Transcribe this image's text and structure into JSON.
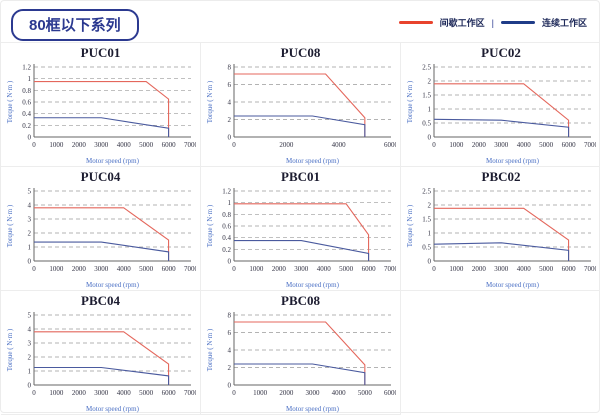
{
  "header": {
    "title": "80框以下系列"
  },
  "legend": {
    "separator": "|",
    "items": [
      {
        "label": "间歇工作区",
        "color": "#e8432d"
      },
      {
        "label": "连续工作区",
        "color": "#1f3c88"
      }
    ]
  },
  "colors": {
    "curve_red": "#e4675c",
    "curve_blue": "#4a5a9e",
    "grid": "#9a9a9a",
    "axis": "#666666"
  },
  "chart_data": [
    {
      "type": "line",
      "title": "PUC01",
      "xlabel": "Motor speed (rpm)",
      "ylabel": "Torque ( N·m )",
      "xlim": [
        0,
        7000
      ],
      "ylim": [
        0,
        1.2
      ],
      "xticks": [
        0,
        1000,
        2000,
        3000,
        4000,
        5000,
        6000,
        7000
      ],
      "yticks": [
        0,
        0.2,
        0.4,
        0.6,
        0.8,
        1,
        1.2
      ],
      "series": [
        {
          "name": "间歇工作区",
          "color_key": "curve_red",
          "points": [
            [
              0,
              0.95
            ],
            [
              5000,
              0.95
            ],
            [
              6000,
              0.65
            ],
            [
              6000,
              0
            ]
          ]
        },
        {
          "name": "连续工作区",
          "color_key": "curve_blue",
          "points": [
            [
              0,
              0.33
            ],
            [
              3000,
              0.33
            ],
            [
              6000,
              0.15
            ],
            [
              6000,
              0
            ]
          ]
        }
      ]
    },
    {
      "type": "line",
      "title": "PUC08",
      "xlabel": "Motor speed (rpm)",
      "ylabel": "Torque ( N·m )",
      "xlim": [
        0,
        6000
      ],
      "ylim": [
        0,
        8
      ],
      "xticks": [
        0,
        2000,
        4000,
        6000
      ],
      "yticks": [
        0,
        2,
        4,
        6,
        8
      ],
      "series": [
        {
          "name": "间歇工作区",
          "color_key": "curve_red",
          "points": [
            [
              0,
              7.2
            ],
            [
              3500,
              7.2
            ],
            [
              5000,
              2.2
            ],
            [
              5000,
              0
            ]
          ]
        },
        {
          "name": "连续工作区",
          "color_key": "curve_blue",
          "points": [
            [
              0,
              2.4
            ],
            [
              3000,
              2.4
            ],
            [
              5000,
              1.4
            ],
            [
              5000,
              0
            ]
          ]
        }
      ]
    },
    {
      "type": "line",
      "title": "PUC02",
      "xlabel": "Motor speed (rpm)",
      "ylabel": "Torque ( N·m )",
      "xlim": [
        0,
        7000
      ],
      "ylim": [
        0,
        2.5
      ],
      "xticks": [
        0,
        1000,
        2000,
        3000,
        4000,
        5000,
        6000,
        7000
      ],
      "yticks": [
        0,
        0.5,
        1,
        1.5,
        2,
        2.5
      ],
      "series": [
        {
          "name": "间歇工作区",
          "color_key": "curve_red",
          "points": [
            [
              0,
              1.9
            ],
            [
              4000,
              1.9
            ],
            [
              6000,
              0.6
            ],
            [
              6000,
              0
            ]
          ]
        },
        {
          "name": "连续工作区",
          "color_key": "curve_blue",
          "points": [
            [
              0,
              0.63
            ],
            [
              3000,
              0.6
            ],
            [
              6000,
              0.35
            ],
            [
              6000,
              0
            ]
          ]
        }
      ]
    },
    {
      "type": "line",
      "title": "PUC04",
      "xlabel": "Motor speed (rpm)",
      "ylabel": "Torque ( N·m )",
      "xlim": [
        0,
        7000
      ],
      "ylim": [
        0,
        5
      ],
      "xticks": [
        0,
        1000,
        2000,
        3000,
        4000,
        5000,
        6000,
        7000
      ],
      "yticks": [
        0,
        1,
        2,
        3,
        4,
        5
      ],
      "series": [
        {
          "name": "间歇工作区",
          "color_key": "curve_red",
          "points": [
            [
              0,
              3.8
            ],
            [
              4000,
              3.8
            ],
            [
              6000,
              1.5
            ],
            [
              6000,
              0
            ]
          ]
        },
        {
          "name": "连续工作区",
          "color_key": "curve_blue",
          "points": [
            [
              0,
              1.35
            ],
            [
              3000,
              1.35
            ],
            [
              6000,
              0.65
            ],
            [
              6000,
              0
            ]
          ]
        }
      ]
    },
    {
      "type": "line",
      "title": "PBC01",
      "xlabel": "Motor speed (rpm)",
      "ylabel": "Torque ( N·m )",
      "xlim": [
        0,
        7000
      ],
      "ylim": [
        0,
        1.2
      ],
      "xticks": [
        0,
        1000,
        2000,
        3000,
        4000,
        5000,
        6000,
        7000
      ],
      "yticks": [
        0,
        0.2,
        0.4,
        0.6,
        0.8,
        1,
        1.2
      ],
      "series": [
        {
          "name": "间歇工作区",
          "color_key": "curve_red",
          "points": [
            [
              0,
              0.98
            ],
            [
              5000,
              0.98
            ],
            [
              6000,
              0.45
            ],
            [
              6000,
              0
            ]
          ]
        },
        {
          "name": "连续工作区",
          "color_key": "curve_blue",
          "points": [
            [
              0,
              0.35
            ],
            [
              3000,
              0.35
            ],
            [
              6000,
              0.13
            ],
            [
              6000,
              0
            ]
          ]
        }
      ]
    },
    {
      "type": "line",
      "title": "PBC02",
      "xlabel": "Motor speed (rpm)",
      "ylabel": "Torque ( N·m )",
      "xlim": [
        0,
        7000
      ],
      "ylim": [
        0,
        2.5
      ],
      "xticks": [
        0,
        1000,
        2000,
        3000,
        4000,
        5000,
        6000,
        7000
      ],
      "yticks": [
        0,
        0.5,
        1,
        1.5,
        2,
        2.5
      ],
      "series": [
        {
          "name": "间歇工作区",
          "color_key": "curve_red",
          "points": [
            [
              0,
              1.88
            ],
            [
              4000,
              1.88
            ],
            [
              6000,
              0.75
            ],
            [
              6000,
              0
            ]
          ]
        },
        {
          "name": "连续工作区",
          "color_key": "curve_blue",
          "points": [
            [
              0,
              0.6
            ],
            [
              3000,
              0.65
            ],
            [
              6000,
              0.38
            ],
            [
              6000,
              0
            ]
          ]
        }
      ]
    },
    {
      "type": "line",
      "title": "PBC04",
      "xlabel": "Motor speed (rpm)",
      "ylabel": "Torque ( N·m )",
      "xlim": [
        0,
        7000
      ],
      "ylim": [
        0,
        5
      ],
      "xticks": [
        0,
        1000,
        2000,
        3000,
        4000,
        5000,
        6000,
        7000
      ],
      "yticks": [
        0,
        1,
        2,
        3,
        4,
        5
      ],
      "series": [
        {
          "name": "间歇工作区",
          "color_key": "curve_red",
          "points": [
            [
              0,
              3.8
            ],
            [
              4000,
              3.8
            ],
            [
              6000,
              1.5
            ],
            [
              6000,
              0
            ]
          ]
        },
        {
          "name": "连续工作区",
          "color_key": "curve_blue",
          "points": [
            [
              0,
              1.25
            ],
            [
              3000,
              1.25
            ],
            [
              6000,
              0.65
            ],
            [
              6000,
              0
            ]
          ]
        }
      ]
    },
    {
      "type": "line",
      "title": "PBC08",
      "xlabel": "Motor speed (rpm)",
      "ylabel": "Torque ( N·m )",
      "xlim": [
        0,
        6000
      ],
      "ylim": [
        0,
        8
      ],
      "xticks": [
        0,
        1000,
        2000,
        3000,
        4000,
        5000,
        6000
      ],
      "yticks": [
        0,
        2,
        4,
        6,
        8
      ],
      "series": [
        {
          "name": "间歇工作区",
          "color_key": "curve_red",
          "points": [
            [
              0,
              7.2
            ],
            [
              3500,
              7.2
            ],
            [
              5000,
              2.3
            ],
            [
              5000,
              0
            ]
          ]
        },
        {
          "name": "连续工作区",
          "color_key": "curve_blue",
          "points": [
            [
              0,
              2.4
            ],
            [
              3000,
              2.4
            ],
            [
              5000,
              1.4
            ],
            [
              5000,
              0
            ]
          ]
        }
      ]
    }
  ]
}
